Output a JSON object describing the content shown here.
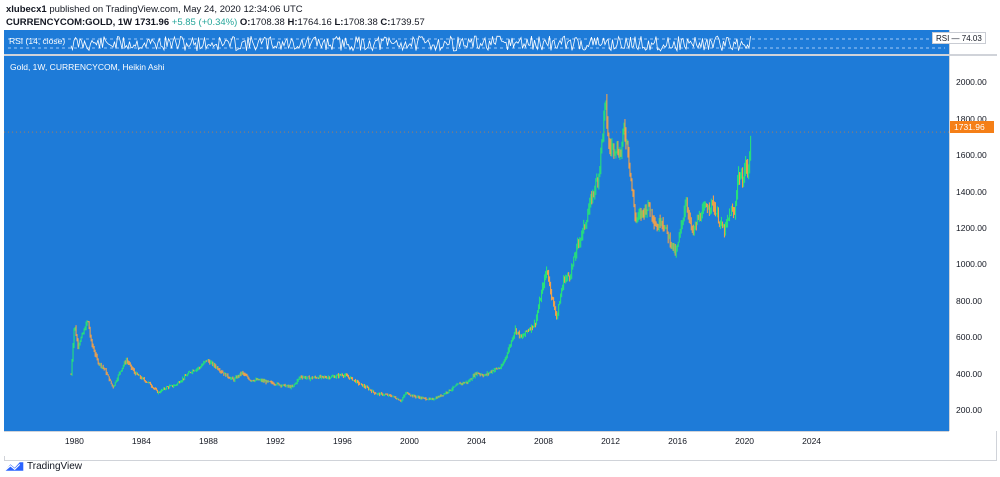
{
  "header": {
    "user": "xlubecx1",
    "published": "published on TradingView.com, May 24, 2020 12:34:06 UTC",
    "symbol": "CURRENCYCOM:GOLD, 1W",
    "close": "1731.96",
    "change": "+5.85 (+0.34%)",
    "o_label": "O:",
    "o_value": "1708.38",
    "h_label": "H:",
    "h_value": "1764.16",
    "l_label": "L:",
    "l_value": "1708.38",
    "c_label": "C:",
    "c_value": "1739.57"
  },
  "rsi": {
    "label": "RSI (14, close)",
    "badge": "RSI — 74.03"
  },
  "chart_title": "Gold, 1W, CURRENCYCOM, Heikin Ashi",
  "last_price": "1731.96",
  "footer": {
    "brand": "TradingView"
  },
  "colors": {
    "background": "#1e7bd8",
    "up": "#26e07a",
    "down": "#f0a04b",
    "rsi_line": "#ffffff",
    "last_price_badge": "#f57f17"
  },
  "chart_data": {
    "type": "line",
    "title": "Gold, 1W, CURRENCYCOM, Heikin Ashi",
    "xlabel": "",
    "ylabel": "",
    "x_ticks": [
      "1980",
      "1984",
      "1988",
      "1992",
      "1996",
      "2000",
      "2004",
      "2008",
      "2012",
      "2016",
      "2020",
      "2024"
    ],
    "y_ticks": [
      "200.00",
      "400.00",
      "600.00",
      "800.00",
      "1000.00",
      "1200.00",
      "1400.00",
      "1600.00",
      "1800.00",
      "2000.00"
    ],
    "xlim": [
      1975.8,
      2032.2
    ],
    "ylim": [
      90,
      2150
    ],
    "grid": false,
    "last_value": 1731.96,
    "series": [
      {
        "values": [
          [
            1979.8,
            400
          ],
          [
            1980.0,
            680
          ],
          [
            1980.2,
            560
          ],
          [
            1980.5,
            620
          ],
          [
            1980.8,
            700
          ],
          [
            1981.0,
            580
          ],
          [
            1981.4,
            470
          ],
          [
            1981.8,
            430
          ],
          [
            1982.3,
            330
          ],
          [
            1982.8,
            430
          ],
          [
            1983.1,
            480
          ],
          [
            1983.6,
            410
          ],
          [
            1984.0,
            380
          ],
          [
            1984.5,
            350
          ],
          [
            1985.0,
            300
          ],
          [
            1985.5,
            330
          ],
          [
            1986.0,
            340
          ],
          [
            1986.5,
            380
          ],
          [
            1987.0,
            420
          ],
          [
            1987.5,
            440
          ],
          [
            1987.9,
            480
          ],
          [
            1988.5,
            440
          ],
          [
            1989.0,
            400
          ],
          [
            1989.5,
            370
          ],
          [
            1990.0,
            410
          ],
          [
            1990.5,
            370
          ],
          [
            1991.0,
            370
          ],
          [
            1991.5,
            360
          ],
          [
            1992.0,
            350
          ],
          [
            1992.5,
            340
          ],
          [
            1993.0,
            330
          ],
          [
            1993.5,
            390
          ],
          [
            1994.0,
            380
          ],
          [
            1994.5,
            385
          ],
          [
            1995.0,
            385
          ],
          [
            1995.5,
            388
          ],
          [
            1996.0,
            400
          ],
          [
            1996.5,
            380
          ],
          [
            1997.0,
            350
          ],
          [
            1997.5,
            325
          ],
          [
            1998.0,
            295
          ],
          [
            1998.5,
            290
          ],
          [
            1999.0,
            280
          ],
          [
            1999.5,
            256
          ],
          [
            1999.8,
            300
          ],
          [
            2000.3,
            280
          ],
          [
            2000.8,
            270
          ],
          [
            2001.3,
            262
          ],
          [
            2001.8,
            280
          ],
          [
            2002.5,
            320
          ],
          [
            2003.0,
            350
          ],
          [
            2003.5,
            360
          ],
          [
            2004.0,
            410
          ],
          [
            2004.5,
            395
          ],
          [
            2005.0,
            425
          ],
          [
            2005.5,
            440
          ],
          [
            2006.0,
            560
          ],
          [
            2006.3,
            650
          ],
          [
            2006.7,
            600
          ],
          [
            2007.0,
            640
          ],
          [
            2007.5,
            680
          ],
          [
            2008.0,
            900
          ],
          [
            2008.2,
            980
          ],
          [
            2008.6,
            780
          ],
          [
            2008.8,
            720
          ],
          [
            2009.2,
            920
          ],
          [
            2009.6,
            950
          ],
          [
            2010.0,
            1100
          ],
          [
            2010.5,
            1230
          ],
          [
            2010.9,
            1380
          ],
          [
            2011.3,
            1500
          ],
          [
            2011.6,
            1800
          ],
          [
            2011.7,
            1900
          ],
          [
            2011.9,
            1650
          ],
          [
            2012.3,
            1650
          ],
          [
            2012.6,
            1610
          ],
          [
            2012.8,
            1750
          ],
          [
            2013.0,
            1670
          ],
          [
            2013.3,
            1400
          ],
          [
            2013.5,
            1250
          ],
          [
            2014.0,
            1300
          ],
          [
            2014.3,
            1330
          ],
          [
            2014.8,
            1200
          ],
          [
            2015.0,
            1260
          ],
          [
            2015.5,
            1150
          ],
          [
            2015.9,
            1060
          ],
          [
            2016.2,
            1200
          ],
          [
            2016.5,
            1360
          ],
          [
            2016.9,
            1170
          ],
          [
            2017.2,
            1250
          ],
          [
            2017.7,
            1320
          ],
          [
            2018.1,
            1340
          ],
          [
            2018.6,
            1220
          ],
          [
            2018.8,
            1190
          ],
          [
            2019.2,
            1300
          ],
          [
            2019.4,
            1280
          ],
          [
            2019.6,
            1500
          ],
          [
            2019.9,
            1470
          ],
          [
            2020.1,
            1570
          ],
          [
            2020.2,
            1480
          ],
          [
            2020.4,
            1730
          ]
        ]
      }
    ]
  }
}
